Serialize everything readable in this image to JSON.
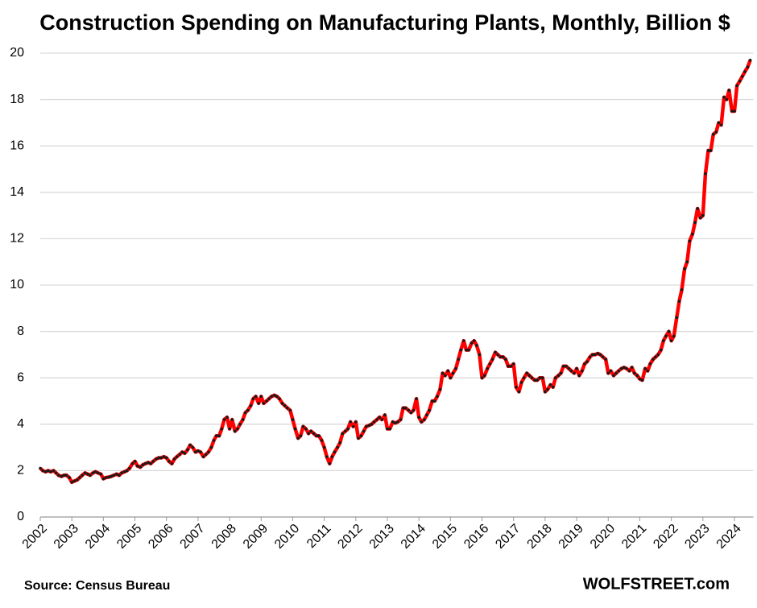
{
  "chart_data": {
    "type": "line",
    "title": "Construction Spending on Manufacturing Plants, Monthly, Billion $",
    "source": "Source: Census Bureau",
    "credit": "WOLFSTREET.com",
    "xlim": [
      2002,
      2024.6
    ],
    "xticks": [
      2002,
      2003,
      2004,
      2005,
      2006,
      2007,
      2008,
      2009,
      2010,
      2011,
      2012,
      2013,
      2014,
      2015,
      2016,
      2017,
      2018,
      2019,
      2020,
      2021,
      2022,
      2023,
      2024
    ],
    "ylim": [
      0,
      20
    ],
    "yticks": [
      0,
      2,
      4,
      6,
      8,
      10,
      12,
      14,
      16,
      18,
      20
    ],
    "grid": true,
    "x": [
      2002,
      2002.08,
      2002.17,
      2002.25,
      2002.33,
      2002.42,
      2002.5,
      2002.58,
      2002.67,
      2002.75,
      2002.83,
      2002.92,
      2003,
      2003.08,
      2003.17,
      2003.25,
      2003.33,
      2003.42,
      2003.5,
      2003.58,
      2003.67,
      2003.75,
      2003.83,
      2003.92,
      2004,
      2004.08,
      2004.17,
      2004.25,
      2004.33,
      2004.42,
      2004.5,
      2004.58,
      2004.67,
      2004.75,
      2004.83,
      2004.92,
      2005,
      2005.08,
      2005.17,
      2005.25,
      2005.33,
      2005.42,
      2005.5,
      2005.58,
      2005.67,
      2005.75,
      2005.83,
      2005.92,
      2006,
      2006.08,
      2006.17,
      2006.25,
      2006.33,
      2006.42,
      2006.5,
      2006.58,
      2006.67,
      2006.75,
      2006.83,
      2006.92,
      2007,
      2007.08,
      2007.17,
      2007.25,
      2007.33,
      2007.42,
      2007.5,
      2007.58,
      2007.67,
      2007.75,
      2007.83,
      2007.92,
      2008,
      2008.08,
      2008.17,
      2008.25,
      2008.33,
      2008.42,
      2008.5,
      2008.58,
      2008.67,
      2008.75,
      2008.83,
      2008.92,
      2009,
      2009.08,
      2009.17,
      2009.25,
      2009.33,
      2009.42,
      2009.5,
      2009.58,
      2009.67,
      2009.75,
      2009.83,
      2009.92,
      2010,
      2010.08,
      2010.17,
      2010.25,
      2010.33,
      2010.42,
      2010.5,
      2010.58,
      2010.67,
      2010.75,
      2010.83,
      2010.92,
      2011,
      2011.08,
      2011.17,
      2011.25,
      2011.33,
      2011.42,
      2011.5,
      2011.58,
      2011.67,
      2011.75,
      2011.83,
      2011.92,
      2012,
      2012.08,
      2012.17,
      2012.25,
      2012.33,
      2012.42,
      2012.5,
      2012.58,
      2012.67,
      2012.75,
      2012.83,
      2012.92,
      2013,
      2013.08,
      2013.17,
      2013.25,
      2013.33,
      2013.42,
      2013.5,
      2013.58,
      2013.67,
      2013.75,
      2013.83,
      2013.92,
      2014,
      2014.08,
      2014.17,
      2014.25,
      2014.33,
      2014.42,
      2014.5,
      2014.58,
      2014.67,
      2014.75,
      2014.83,
      2014.92,
      2015,
      2015.08,
      2015.17,
      2015.25,
      2015.33,
      2015.42,
      2015.5,
      2015.58,
      2015.67,
      2015.75,
      2015.83,
      2015.92,
      2016,
      2016.08,
      2016.17,
      2016.25,
      2016.33,
      2016.42,
      2016.5,
      2016.58,
      2016.67,
      2016.75,
      2016.83,
      2016.92,
      2017,
      2017.08,
      2017.17,
      2017.25,
      2017.33,
      2017.42,
      2017.5,
      2017.58,
      2017.67,
      2017.75,
      2017.83,
      2017.92,
      2018,
      2018.08,
      2018.17,
      2018.25,
      2018.33,
      2018.42,
      2018.5,
      2018.58,
      2018.67,
      2018.75,
      2018.83,
      2018.92,
      2019,
      2019.08,
      2019.17,
      2019.25,
      2019.33,
      2019.42,
      2019.5,
      2019.58,
      2019.67,
      2019.75,
      2019.83,
      2019.92,
      2020,
      2020.08,
      2020.17,
      2020.25,
      2020.33,
      2020.42,
      2020.5,
      2020.58,
      2020.67,
      2020.75,
      2020.83,
      2020.92,
      2021,
      2021.08,
      2021.17,
      2021.25,
      2021.33,
      2021.42,
      2021.5,
      2021.58,
      2021.67,
      2021.75,
      2021.83,
      2021.92,
      2022,
      2022.08,
      2022.17,
      2022.25,
      2022.33,
      2022.42,
      2022.5,
      2022.58,
      2022.67,
      2022.75,
      2022.83,
      2022.92,
      2023,
      2023.08,
      2023.17,
      2023.25,
      2023.33,
      2023.42,
      2023.5,
      2023.58,
      2023.67,
      2023.75,
      2023.83,
      2023.92,
      2024,
      2024.08,
      2024.17,
      2024.25,
      2024.33,
      2024.42,
      2024.5
    ],
    "series": [
      {
        "name": "Construction spending",
        "color": "#ff0000",
        "marker_color": "#1a1a1a",
        "values": [
          2.1,
          2.0,
          1.95,
          2.0,
          1.95,
          2.0,
          1.9,
          1.8,
          1.75,
          1.8,
          1.8,
          1.7,
          1.5,
          1.55,
          1.6,
          1.7,
          1.8,
          1.9,
          1.85,
          1.8,
          1.9,
          1.95,
          1.9,
          1.85,
          1.65,
          1.7,
          1.72,
          1.75,
          1.8,
          1.85,
          1.8,
          1.9,
          1.95,
          2.0,
          2.1,
          2.3,
          2.4,
          2.2,
          2.15,
          2.25,
          2.3,
          2.35,
          2.3,
          2.4,
          2.5,
          2.55,
          2.55,
          2.6,
          2.55,
          2.4,
          2.3,
          2.5,
          2.6,
          2.7,
          2.8,
          2.75,
          2.9,
          3.1,
          3.0,
          2.8,
          2.85,
          2.8,
          2.6,
          2.7,
          2.8,
          3.0,
          3.3,
          3.5,
          3.5,
          3.8,
          4.2,
          4.3,
          3.8,
          4.2,
          3.7,
          3.8,
          4.0,
          4.2,
          4.5,
          4.6,
          4.8,
          5.1,
          5.2,
          4.9,
          5.2,
          4.9,
          5.0,
          5.1,
          5.2,
          5.25,
          5.2,
          5.1,
          4.9,
          4.8,
          4.7,
          4.6,
          4.2,
          3.8,
          3.4,
          3.5,
          3.9,
          3.8,
          3.6,
          3.7,
          3.6,
          3.5,
          3.5,
          3.3,
          3.0,
          2.6,
          2.3,
          2.6,
          2.8,
          3.0,
          3.2,
          3.6,
          3.7,
          3.8,
          4.1,
          3.9,
          4.1,
          3.4,
          3.5,
          3.7,
          3.9,
          3.95,
          4.0,
          4.1,
          4.2,
          4.3,
          4.2,
          4.4,
          3.8,
          3.8,
          4.1,
          4.05,
          4.1,
          4.2,
          4.7,
          4.7,
          4.6,
          4.5,
          4.6,
          5.1,
          4.3,
          4.1,
          4.2,
          4.4,
          4.6,
          5.0,
          5.0,
          5.2,
          5.5,
          6.2,
          6.1,
          6.3,
          6.0,
          6.2,
          6.4,
          6.8,
          7.2,
          7.6,
          7.2,
          7.2,
          7.5,
          7.6,
          7.4,
          7.0,
          6.0,
          6.1,
          6.4,
          6.6,
          6.8,
          7.1,
          7.0,
          6.9,
          6.9,
          6.8,
          6.5,
          6.5,
          6.6,
          5.6,
          5.4,
          5.8,
          6.0,
          6.2,
          6.1,
          6.0,
          5.9,
          5.9,
          6.0,
          6.0,
          5.4,
          5.5,
          5.7,
          5.6,
          6.0,
          6.1,
          6.2,
          6.5,
          6.5,
          6.4,
          6.3,
          6.2,
          6.4,
          6.1,
          6.3,
          6.6,
          6.7,
          6.9,
          7.0,
          7.0,
          7.05,
          7.0,
          6.9,
          6.8,
          6.2,
          6.3,
          6.1,
          6.2,
          6.3,
          6.4,
          6.45,
          6.4,
          6.3,
          6.45,
          6.2,
          6.1,
          5.95,
          5.9,
          6.4,
          6.3,
          6.6,
          6.8,
          6.9,
          7.0,
          7.2,
          7.6,
          7.8,
          8.0,
          7.6,
          7.8,
          8.6,
          9.3,
          9.8,
          10.7,
          11.0,
          11.9,
          12.2,
          12.7,
          13.3,
          12.9,
          13.0,
          14.8,
          15.8,
          15.8,
          16.5,
          16.6,
          17.0,
          16.9,
          18.1,
          18.0,
          18.4,
          17.5,
          17.5,
          18.6,
          18.8,
          19.0,
          19.2,
          19.4,
          19.7
        ]
      }
    ]
  }
}
